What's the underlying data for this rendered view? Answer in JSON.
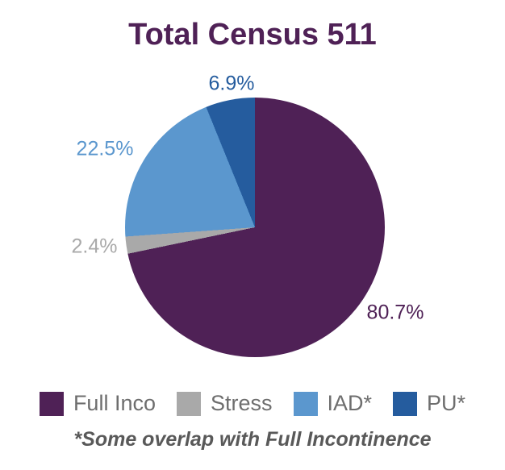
{
  "title": "Total Census 511",
  "chart_data": {
    "type": "pie",
    "title": "Total Census 511",
    "slices": [
      {
        "label": "Full Inco",
        "value": 80.7,
        "display": "80.7%",
        "color": "#4F2156"
      },
      {
        "label": "Stress",
        "value": 2.4,
        "display": "2.4%",
        "color": "#A9A9A9"
      },
      {
        "label": "IAD*",
        "value": 22.5,
        "display": "22.5%",
        "color": "#5B97CE"
      },
      {
        "label": "PU*",
        "value": 6.9,
        "display": "6.9%",
        "color": "#255C9E"
      }
    ],
    "values_sum": 112.5,
    "normalization": "values sum to 112.5 due to category overlap; slice angles drawn as value/sum of 112.5",
    "start_angle_deg": 0,
    "direction": "clockwise",
    "slice_order_clockwise_from_top": [
      "Full Inco",
      "Stress",
      "IAD*",
      "PU*"
    ],
    "legend_position": "bottom",
    "footnote": "*Some overlap with Full Incontinence"
  }
}
